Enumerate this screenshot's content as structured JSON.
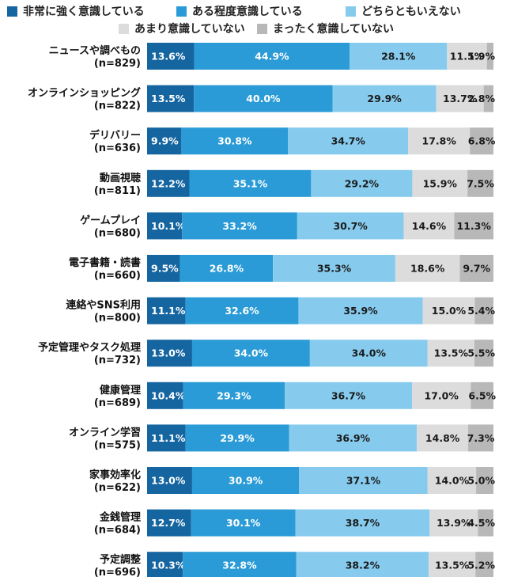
{
  "chart_data": {
    "type": "bar",
    "orientation": "horizontal",
    "stacked": true,
    "percent": true,
    "legend_position": "top",
    "grid": false,
    "categories": [
      [
        "ニュースや調べもの",
        "(n=829)"
      ],
      [
        "オンラインショッピング",
        "(n=822)"
      ],
      [
        "デリバリー",
        "(n=636)"
      ],
      [
        "動画視聴",
        "(n=811)"
      ],
      [
        "ゲームプレイ",
        "(n=680)"
      ],
      [
        "電子書籍・読書",
        "(n=660)"
      ],
      [
        "連絡やSNS利用",
        "(n=800)"
      ],
      [
        "予定管理やタスク処理",
        "(n=732)"
      ],
      [
        "健康管理",
        "(n=689)"
      ],
      [
        "オンライン学習",
        "(n=575)"
      ],
      [
        "家事効率化",
        "(n=622)"
      ],
      [
        "金銭管理",
        "(n=684)"
      ],
      [
        "予定調整",
        "(n=696)"
      ]
    ],
    "series": [
      {
        "name": "非常に強く意識している",
        "color": "#1565a0",
        "text_color": "#ffffff",
        "values": [
          13.6,
          13.5,
          9.9,
          12.2,
          10.1,
          9.5,
          11.1,
          13.0,
          10.4,
          11.1,
          13.0,
          12.7,
          10.3
        ],
        "labels": [
          "13.6%",
          "13.5%",
          "9.9%",
          "12.2%",
          "10.1%",
          "9.5%",
          "11.1%",
          "13.0%",
          "10.4%",
          "11.1%",
          "13.0%",
          "12.7%",
          "10.3%"
        ]
      },
      {
        "name": "ある程度意識している",
        "color": "#2a9bd6",
        "text_color": "#ffffff",
        "values": [
          44.9,
          40.0,
          30.8,
          35.1,
          33.2,
          26.8,
          32.6,
          34.0,
          29.3,
          29.9,
          30.9,
          30.1,
          32.8
        ],
        "labels": [
          "44.9%",
          "40.0%",
          "30.8%",
          "35.1%",
          "33.2%",
          "26.8%",
          "32.6%",
          "34.0%",
          "29.3%",
          "29.9%",
          "30.9%",
          "30.1%",
          "32.8%"
        ]
      },
      {
        "name": "どちらともいえない",
        "color": "#86cbee",
        "text_color": "#1a1a1a",
        "values": [
          28.1,
          29.9,
          34.7,
          29.2,
          30.7,
          35.3,
          35.9,
          34.0,
          36.7,
          36.9,
          37.1,
          38.7,
          38.2
        ],
        "labels": [
          "28.1%",
          "29.9%",
          "34.7%",
          "29.2%",
          "30.7%",
          "35.3%",
          "35.9%",
          "34.0%",
          "36.7%",
          "36.9%",
          "37.1%",
          "38.7%",
          "38.2%"
        ]
      },
      {
        "name": "あまり意識していない",
        "color": "#dcdcdc",
        "text_color": "#1a1a1a",
        "values": [
          11.5,
          13.7,
          17.8,
          15.9,
          14.6,
          18.6,
          15.0,
          13.5,
          17.0,
          14.8,
          14.0,
          13.9,
          13.5
        ],
        "labels": [
          "11.5%",
          "13.7%",
          "17.8%",
          "15.9%",
          "14.6%",
          "18.6%",
          "15.0%",
          "13.5%",
          "17.0%",
          "14.8%",
          "14.0%",
          "13.9%",
          "13.5%"
        ]
      },
      {
        "name": "まったく意識していない",
        "color": "#b8b8b8",
        "text_color": "#1a1a1a",
        "values": [
          1.9,
          2.8,
          6.8,
          7.5,
          11.3,
          9.7,
          5.4,
          5.5,
          6.5,
          7.3,
          5.0,
          4.5,
          5.2
        ],
        "labels": [
          "1.9%",
          "2.8%",
          "6.8%",
          "7.5%",
          "11.3%",
          "9.7%",
          "5.4%",
          "5.5%",
          "6.5%",
          "7.3%",
          "5.0%",
          "4.5%",
          "5.2%"
        ]
      }
    ]
  }
}
